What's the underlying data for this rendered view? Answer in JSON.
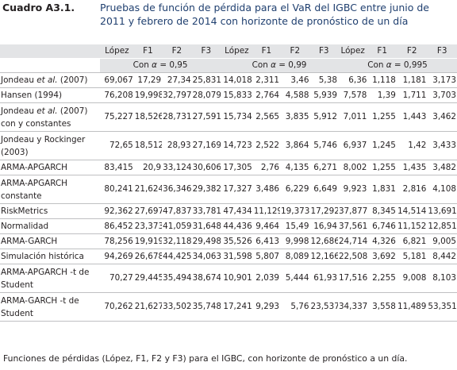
{
  "label": "Cuadro A3.1.",
  "title": "Pruebas de función de pérdida para el VaR del IGBC entre junio de 2011 y febrero de 2014 con horizonte de pronóstico de un día",
  "table": {
    "columns": [
      "López",
      "F1",
      "F2",
      "F3",
      "López",
      "F1",
      "F2",
      "F3",
      "López",
      "F1",
      "F2",
      "F3"
    ],
    "groups": [
      "Con α = 0,95",
      "Con α = 0,99",
      "Con α = 0,995"
    ],
    "rows": [
      {
        "label": "Jondeau et al. (2007)",
        "values": [
          "69,067",
          "17,29",
          "27,34",
          "25,831",
          "14,018",
          "2,311",
          "3,46",
          "5,38",
          "6,36",
          "1,118",
          "1,181",
          "3,173"
        ]
      },
      {
        "label": "Hansen (1994)",
        "values": [
          "76,208",
          "19,998",
          "32,797",
          "28,079",
          "15,833",
          "2,764",
          "4,588",
          "5,939",
          "7,578",
          "1,39",
          "1,711",
          "3,703"
        ]
      },
      {
        "label": "Jondeau et al. (2007) con y constantes",
        "values": [
          "75,227",
          "18,526",
          "28,731",
          "27,591",
          "15,734",
          "2,565",
          "3,835",
          "5,912",
          "7,011",
          "1,255",
          "1,443",
          "3,462"
        ]
      },
      {
        "label": "Jondeau y Rockinger (2003)",
        "values": [
          "72,65",
          "18,512",
          "28,93",
          "27,169",
          "14,723",
          "2,522",
          "3,864",
          "5,746",
          "6,937",
          "1,245",
          "1,42",
          "3,433"
        ]
      },
      {
        "label": "ARMA-APGARCH",
        "values": [
          "83,415",
          "20,9",
          "33,124",
          "30,606",
          "17,305",
          "2,76",
          "4,135",
          "6,271",
          "8,002",
          "1,255",
          "1,435",
          "3,482"
        ]
      },
      {
        "label": "ARMA-APGARCH constante",
        "values": [
          "80,241",
          "21,624",
          "36,346",
          "29,382",
          "17,327",
          "3,486",
          "6,229",
          "6,649",
          "9,923",
          "1,831",
          "2,816",
          "4,108"
        ]
      },
      {
        "label": "RiskMetrics",
        "values": [
          "92,362",
          "27,697",
          "47,837",
          "33,781",
          "47,434",
          "11,129",
          "19,373",
          "17,292",
          "37,877",
          "8,345",
          "14,514",
          "13,691"
        ]
      },
      {
        "label": "Normalidad",
        "values": [
          "86,452",
          "23,373",
          "41,059",
          "31,648",
          "44,436",
          "9,464",
          "15,49",
          "16,94",
          "37,561",
          "6,746",
          "11,152",
          "12,851"
        ]
      },
      {
        "label": "ARMA-GARCH",
        "values": [
          "78,256",
          "19,919",
          "32,118",
          "29,498",
          "35,526",
          "6,413",
          "9,998",
          "12,686",
          "24,714",
          "4,326",
          "6,821",
          "9,005"
        ]
      },
      {
        "label": "Simulación histórica",
        "values": [
          "94,269",
          "26,678",
          "44,425",
          "34,063",
          "31,598",
          "5,807",
          "8,089",
          "12,166",
          "22,508",
          "3,692",
          "5,181",
          "8,442"
        ]
      },
      {
        "label": "ARMA-APGARCH -t de Student",
        "values": [
          "70,27",
          "29,445",
          "35,494",
          "38,674",
          "10,901",
          "2,039",
          "5,444",
          "61,93",
          "17,516",
          "2,255",
          "9,008",
          "8,103"
        ]
      },
      {
        "label": "ARMA-GARCH -t de Student",
        "values": [
          "70,262",
          "21,627",
          "33,502",
          "35,748",
          "17,241",
          "9,293",
          "5,76",
          "23,537",
          "34,337",
          "3,558",
          "11,489",
          "53,351"
        ]
      }
    ]
  },
  "note": "Funciones de pérdidas (López, F1, F2 y F3) para el IGBC, con horizonte de pronóstico a un día."
}
